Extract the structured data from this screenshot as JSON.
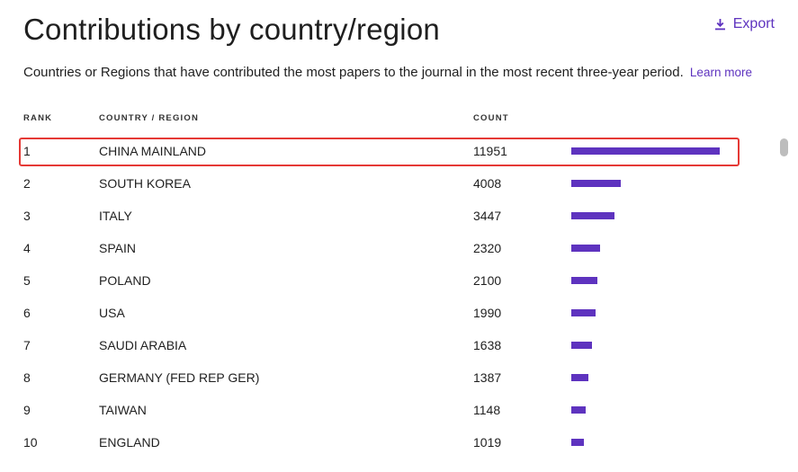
{
  "header": {
    "title": "Contributions by country/region",
    "export_label": "Export",
    "subtitle": "Countries or Regions that have contributed the most papers to the journal in the most recent three-year period.",
    "learn_more": "Learn more"
  },
  "table": {
    "columns": {
      "rank": "RANK",
      "country": "COUNTRY / REGION",
      "count": "COUNT"
    },
    "rows": [
      {
        "rank": "1",
        "country": "CHINA MAINLAND",
        "count": "11951",
        "value": 11951
      },
      {
        "rank": "2",
        "country": "SOUTH KOREA",
        "count": "4008",
        "value": 4008
      },
      {
        "rank": "3",
        "country": "ITALY",
        "count": "3447",
        "value": 3447
      },
      {
        "rank": "4",
        "country": "SPAIN",
        "count": "2320",
        "value": 2320
      },
      {
        "rank": "5",
        "country": "POLAND",
        "count": "2100",
        "value": 2100
      },
      {
        "rank": "6",
        "country": "USA",
        "count": "1990",
        "value": 1990
      },
      {
        "rank": "7",
        "country": "SAUDI ARABIA",
        "count": "1638",
        "value": 1638
      },
      {
        "rank": "8",
        "country": "GERMANY (FED REP GER)",
        "count": "1387",
        "value": 1387
      },
      {
        "rank": "9",
        "country": "TAIWAN",
        "count": "1148",
        "value": 1148
      },
      {
        "rank": "10",
        "country": "ENGLAND",
        "count": "1019",
        "value": 1019
      }
    ],
    "highlighted_rank": "1"
  },
  "colors": {
    "accent": "#5e33bf",
    "highlight_border": "#e53935"
  },
  "icons": {
    "export": "download-icon"
  }
}
